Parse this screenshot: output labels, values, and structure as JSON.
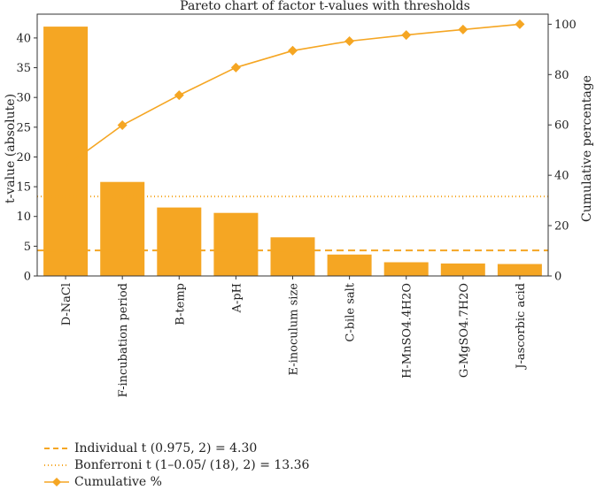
{
  "colors": {
    "bar": "#F5A623",
    "line": "#F5A623",
    "axis": "#333333"
  },
  "chart_data": {
    "type": "bar",
    "title": "Pareto chart of factor t-values with thresholds",
    "ylabel": "t-value (absolute)",
    "y2label": "Cumulative percentage",
    "ylim": [
      0,
      44
    ],
    "y2lim": [
      0,
      104
    ],
    "yticks": [
      "0",
      "5",
      "10",
      "15",
      "20",
      "25",
      "30",
      "35",
      "40"
    ],
    "y2ticks": [
      "0",
      "20",
      "40",
      "60",
      "80",
      "100"
    ],
    "categories": [
      "D-NaCl",
      "F-incubation period",
      "B-temp",
      "A-pH",
      "E-inoculum size",
      "C-bile salt",
      "H-MnSO4.4H2O",
      "G-MgSO4.7H2O",
      "J-ascorbic acid"
    ],
    "values": [
      41.9,
      15.8,
      11.5,
      10.6,
      6.5,
      3.6,
      2.3,
      2.1,
      2.0
    ],
    "cumulative_percent": [
      43.5,
      59.9,
      71.8,
      82.8,
      89.5,
      93.3,
      95.7,
      97.9,
      100.0
    ],
    "thresholds": [
      {
        "label": "Individual t (0.975, 2) = 4.30",
        "value": 4.3,
        "style": "dashed"
      },
      {
        "label": "Bonferroni t (1–0.05/ (18), 2) = 13.36",
        "value": 13.36,
        "style": "dotted"
      }
    ],
    "legend": {
      "cumulative_label": "Cumulative %",
      "position": "bottom-left"
    }
  }
}
